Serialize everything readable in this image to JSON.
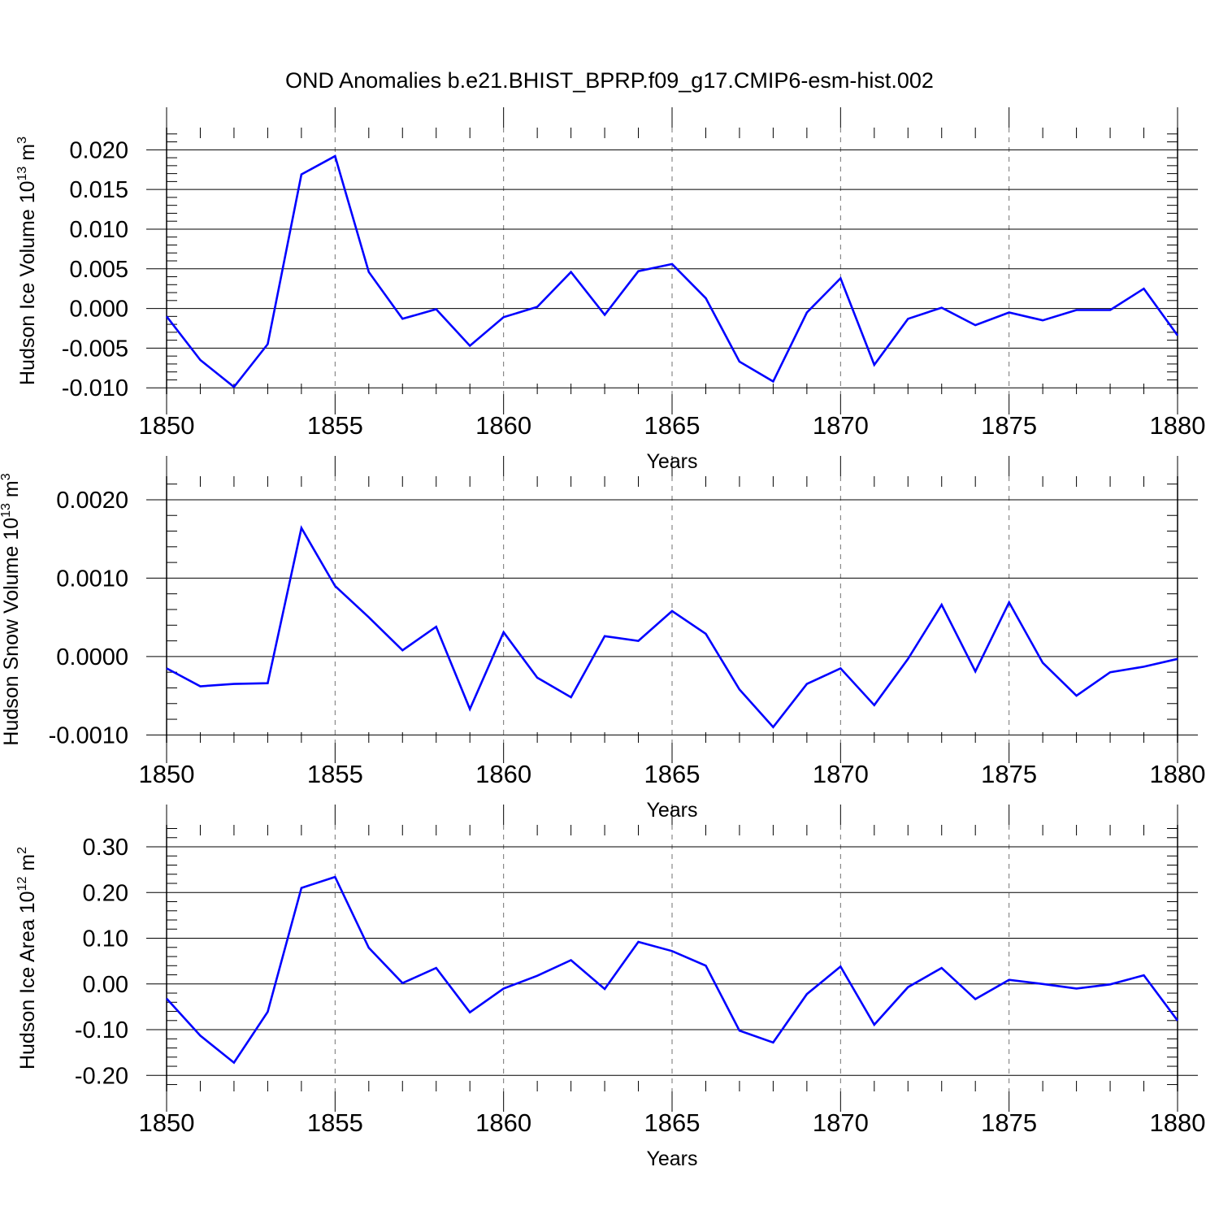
{
  "title": "OND Anomalies b.e21.BHIST_BPRP.f09_g17.CMIP6-esm-hist.002",
  "line_color": "#0000ff",
  "chart_data": [
    {
      "type": "line",
      "xlabel": "Years",
      "ylabel": "Hudson Ice Volume 10",
      "ylabel_exp": "13",
      "ylabel_unit": " m",
      "ylabel_unit_exp": "3",
      "xlim": [
        1850,
        1880
      ],
      "ylim": [
        -0.0108,
        0.0228
      ],
      "xticks": [
        1850,
        1855,
        1860,
        1865,
        1870,
        1875,
        1880
      ],
      "xtick_labels": [
        "1850",
        "1855",
        "1860",
        "1865",
        "1870",
        "1875",
        "1880"
      ],
      "yticks": [
        -0.01,
        -0.005,
        0.0,
        0.005,
        0.01,
        0.015,
        0.02
      ],
      "ytick_labels": [
        "-0.010",
        "-0.005",
        "0.000",
        "0.005",
        "0.010",
        "0.015",
        "0.020"
      ],
      "x": [
        1850,
        1851,
        1852,
        1853,
        1854,
        1855,
        1856,
        1857,
        1858,
        1859,
        1860,
        1861,
        1862,
        1863,
        1864,
        1865,
        1866,
        1867,
        1868,
        1869,
        1870,
        1871,
        1872,
        1873,
        1874,
        1875,
        1876,
        1877,
        1878,
        1879,
        1880
      ],
      "values": [
        -0.001,
        -0.0065,
        -0.0099,
        -0.0045,
        0.0169,
        0.0192,
        0.0046,
        -0.0013,
        -0.0001,
        -0.0047,
        -0.0011,
        0.0002,
        0.0046,
        -0.0008,
        0.0047,
        0.0056,
        0.0013,
        -0.0067,
        -0.0092,
        -0.0005,
        0.0038,
        -0.0071,
        -0.0013,
        0.0001,
        -0.0021,
        -0.0005,
        -0.0015,
        -0.0002,
        -0.0002,
        0.0025,
        -0.0034
      ]
    },
    {
      "type": "line",
      "xlabel": "Years",
      "ylabel": "Hudson Snow Volume 10",
      "ylabel_exp": "13",
      "ylabel_unit": " m",
      "ylabel_unit_exp": "3",
      "xlim": [
        1850,
        1880
      ],
      "ylim": [
        -0.0011,
        0.0023
      ],
      "xticks": [
        1850,
        1855,
        1860,
        1865,
        1870,
        1875,
        1880
      ],
      "xtick_labels": [
        "1850",
        "1855",
        "1860",
        "1865",
        "1870",
        "1875",
        "1880"
      ],
      "yticks": [
        -0.001,
        0.0,
        0.001,
        0.002
      ],
      "ytick_labels": [
        "-0.0010",
        "0.0000",
        "0.0010",
        "0.0020"
      ],
      "x": [
        1850,
        1851,
        1852,
        1853,
        1854,
        1855,
        1856,
        1857,
        1858,
        1859,
        1860,
        1861,
        1862,
        1863,
        1864,
        1865,
        1866,
        1867,
        1868,
        1869,
        1870,
        1871,
        1872,
        1873,
        1874,
        1875,
        1876,
        1877,
        1878,
        1879,
        1880
      ],
      "values": [
        -0.00015,
        -0.00038,
        -0.00035,
        -0.00034,
        0.00164,
        0.0009,
        0.0005,
        8e-05,
        0.00038,
        -0.00067,
        0.00031,
        -0.00027,
        -0.00052,
        0.00026,
        0.0002,
        0.00058,
        0.00029,
        -0.00042,
        -0.0009,
        -0.00035,
        -0.00015,
        -0.00062,
        -3e-05,
        0.00066,
        -0.00019,
        0.00069,
        -8e-05,
        -0.0005,
        -0.0002,
        -0.00013,
        -3e-05
      ]
    },
    {
      "type": "line",
      "xlabel": "Years",
      "ylabel": "Hudson Ice Area 10",
      "ylabel_exp": "12",
      "ylabel_unit": " m",
      "ylabel_unit_exp": "2",
      "xlim": [
        1850,
        1880
      ],
      "ylim": [
        -0.235,
        0.348
      ],
      "xticks": [
        1850,
        1855,
        1860,
        1865,
        1870,
        1875,
        1880
      ],
      "xtick_labels": [
        "1850",
        "1855",
        "1860",
        "1865",
        "1870",
        "1875",
        "1880"
      ],
      "yticks": [
        -0.2,
        -0.1,
        0.0,
        0.1,
        0.2,
        0.3
      ],
      "ytick_labels": [
        "-0.20",
        "-0.10",
        "0.00",
        "0.10",
        "0.20",
        "0.30"
      ],
      "x": [
        1850,
        1851,
        1852,
        1853,
        1854,
        1855,
        1856,
        1857,
        1858,
        1859,
        1860,
        1861,
        1862,
        1863,
        1864,
        1865,
        1866,
        1867,
        1868,
        1869,
        1870,
        1871,
        1872,
        1873,
        1874,
        1875,
        1876,
        1877,
        1878,
        1879,
        1880
      ],
      "values": [
        -0.032,
        -0.113,
        -0.172,
        -0.061,
        0.21,
        0.234,
        0.079,
        0.002,
        0.035,
        -0.062,
        -0.01,
        0.018,
        0.052,
        -0.011,
        0.092,
        0.072,
        0.04,
        -0.102,
        -0.128,
        -0.022,
        0.038,
        -0.089,
        -0.007,
        0.035,
        -0.033,
        0.009,
        0.0,
        -0.01,
        -0.001,
        0.019,
        -0.08
      ]
    }
  ]
}
